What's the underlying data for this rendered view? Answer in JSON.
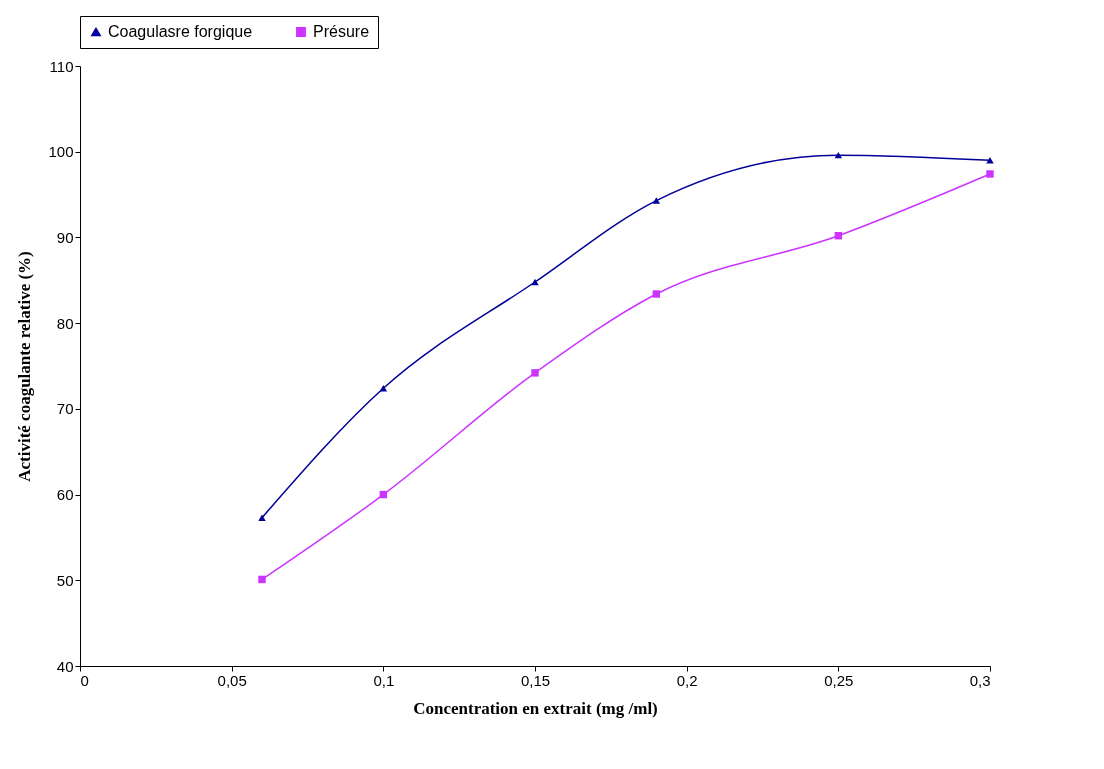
{
  "chart_data": {
    "type": "line",
    "xlabel": "Concentration en extrait (mg /ml)",
    "ylabel": "Activité coagulante relative (%)",
    "xlim": [
      0,
      0.3
    ],
    "xticks": [
      0,
      {
        "value": 0.05,
        "label": "0,05"
      },
      {
        "value": 0.1,
        "label": "0,1"
      },
      {
        "value": 0.15,
        "label": "0,15"
      },
      {
        "value": 0.2,
        "label": "0,2"
      },
      {
        "value": 0.25,
        "label": "0,25"
      },
      {
        "value": 0.3,
        "label": "0,3"
      }
    ],
    "ylim": [
      40,
      110
    ],
    "yticks": [
      40,
      50,
      60,
      70,
      80,
      90,
      100,
      110
    ],
    "x": [
      0.06,
      0.1,
      0.15,
      0.19,
      0.25,
      0.3
    ],
    "series": [
      {
        "name": "Coagulasre forgique",
        "color": "#000099",
        "marker": "triangle",
        "values": [
          57.3,
          72.4,
          84.8,
          94.3,
          99.6,
          99
        ]
      },
      {
        "name": "Présure",
        "color": "#cc33ff",
        "marker": "square",
        "values": [
          50.1,
          60,
          74.2,
          83.4,
          90.2,
          97.4
        ]
      }
    ],
    "legend": "top",
    "grid": false,
    "line_style": "solid"
  }
}
